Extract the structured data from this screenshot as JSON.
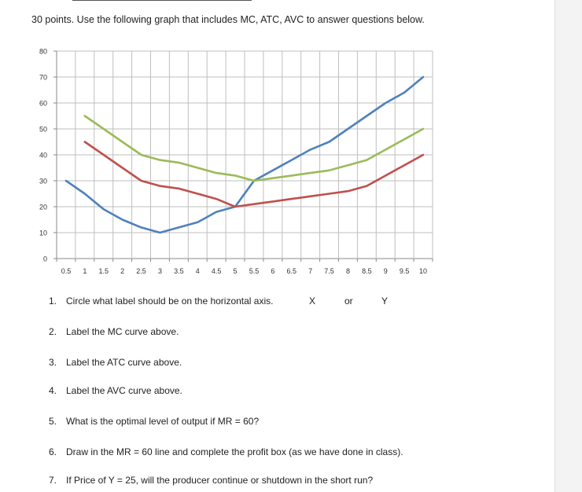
{
  "document": {
    "heading": "30 points. Use the following graph that includes MC, ATC, AVC to answer questions below.",
    "questions": [
      {
        "num": "1.",
        "text": "Circle what label should be on the horizontal axis."
      },
      {
        "num": "2.",
        "text": "Label the MC curve above."
      },
      {
        "num": "3.",
        "text": "Label the ATC curve above."
      },
      {
        "num": "4.",
        "text": "Label the AVC curve above."
      },
      {
        "num": "5.",
        "text": "What is the optimal level of output if MR = 60?"
      },
      {
        "num": "6.",
        "text": "Draw in the MR = 60 line and complete the profit box (as we have done in class)."
      },
      {
        "num": "7.",
        "text": "If Price of Y = 25, will the producer continue or shutdown in the short run?"
      }
    ],
    "axis_choice": {
      "option_x": "X",
      "or_text": "or",
      "option_y": "Y"
    }
  },
  "chart_data": {
    "type": "line",
    "x": [
      0.5,
      1,
      1.5,
      2,
      2.5,
      3,
      3.5,
      4,
      4.5,
      5,
      5.5,
      6,
      6.5,
      7,
      7.5,
      8,
      8.5,
      9,
      9.5,
      10
    ],
    "x_tick_labels": [
      "0.5",
      "1",
      "1.5",
      "2",
      "2.5",
      "3",
      "3.5",
      "4",
      "4.5",
      "5",
      "5.5",
      "6",
      "6.5",
      "7",
      "7.5",
      "8",
      "8.5",
      "9",
      "9.5",
      "10"
    ],
    "y_tick_labels": [
      "0",
      "10",
      "20",
      "30",
      "40",
      "50",
      "60",
      "70",
      "80"
    ],
    "ylim": [
      0,
      80
    ],
    "grid": true,
    "series": [
      {
        "color": "#4f81bd",
        "values": [
          30,
          25,
          19,
          15,
          12,
          10,
          12,
          14,
          18,
          20,
          30,
          34,
          38,
          42,
          45,
          50,
          55,
          60,
          64,
          70
        ]
      },
      {
        "color": "#c0504d",
        "values": [
          null,
          45,
          40,
          35,
          30,
          28,
          27,
          25,
          23,
          20,
          21,
          22,
          23,
          24,
          25,
          26,
          28,
          32,
          36,
          40
        ]
      },
      {
        "color": "#9bbb59",
        "values": [
          null,
          55,
          50,
          45,
          40,
          38,
          37,
          35,
          33,
          32,
          30,
          31,
          32,
          33,
          34,
          36,
          38,
          42,
          46,
          50
        ]
      }
    ]
  }
}
